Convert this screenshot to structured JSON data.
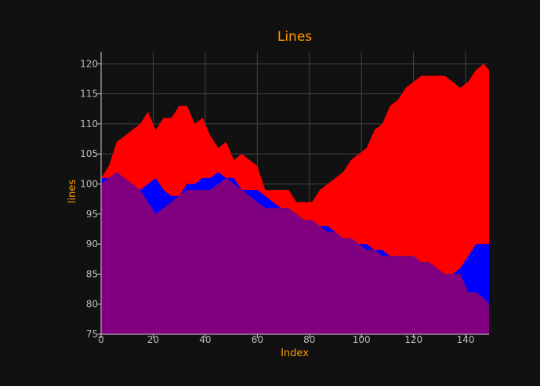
{
  "chart_data": {
    "type": "area",
    "title": "Lines",
    "xlabel": "Index",
    "ylabel": "lines",
    "xlim": [
      0,
      149
    ],
    "ylim": [
      75,
      122
    ],
    "xticks": [
      0,
      20,
      40,
      60,
      80,
      100,
      120,
      140
    ],
    "yticks": [
      75,
      80,
      85,
      90,
      95,
      100,
      105,
      110,
      115,
      120
    ],
    "grid": true,
    "legend": "none",
    "colors": {
      "background": "#111111",
      "plot_background": "#111111",
      "grid": "#444444",
      "axis": "#cccccc",
      "title": "#ff9900",
      "tick_labels": "#bbbbbb"
    },
    "series": [
      {
        "color": "#ff0000",
        "x": [
          0,
          3,
          6,
          9,
          12,
          15,
          18,
          21,
          24,
          27,
          30,
          33,
          36,
          39,
          42,
          45,
          48,
          51,
          54,
          57,
          60,
          63,
          66,
          69,
          72,
          75,
          78,
          81,
          84,
          87,
          90,
          93,
          96,
          99,
          102,
          105,
          108,
          111,
          114,
          117,
          120,
          123,
          126,
          129,
          132,
          135,
          138,
          141,
          144,
          147,
          149
        ],
        "values": [
          101,
          103,
          107,
          108,
          109,
          110,
          112,
          109,
          111,
          111,
          113,
          113,
          110,
          111,
          108,
          106,
          107,
          104,
          105,
          104,
          103,
          99,
          99,
          99,
          99,
          97,
          97,
          97,
          99,
          100,
          101,
          102,
          104,
          105,
          106,
          109,
          110,
          113,
          114,
          116,
          117,
          118,
          118,
          118,
          118,
          117,
          116,
          117,
          119,
          120,
          119
        ]
      },
      {
        "color": "#0000ff",
        "x": [
          0,
          3,
          6,
          9,
          12,
          15,
          18,
          21,
          24,
          27,
          30,
          33,
          36,
          39,
          42,
          45,
          48,
          51,
          54,
          57,
          60,
          63,
          66,
          69,
          72,
          75,
          78,
          81,
          84,
          87,
          90,
          93,
          96,
          99,
          102,
          105,
          108,
          111,
          114,
          117,
          120,
          123,
          126,
          129,
          132,
          135,
          138,
          141,
          144,
          147,
          149
        ],
        "values": [
          101,
          101,
          102,
          101,
          100,
          99,
          100,
          101,
          99,
          98,
          98,
          100,
          100,
          101,
          101,
          102,
          101,
          101,
          99,
          99,
          99,
          98,
          97,
          96,
          96,
          95,
          94,
          94,
          93,
          93,
          92,
          91,
          91,
          90,
          90,
          89,
          89,
          88,
          88,
          88,
          88,
          87,
          87,
          86,
          85,
          85,
          86,
          88,
          90,
          90,
          90
        ]
      },
      {
        "color": "#008000",
        "x": [
          0,
          3,
          6,
          9,
          12,
          15,
          18,
          21,
          24,
          27,
          30,
          33,
          36,
          39,
          42,
          45,
          48,
          51,
          54,
          57,
          60,
          63,
          66,
          69,
          72,
          75,
          78,
          81,
          84,
          87,
          90,
          93,
          96,
          99,
          102,
          105,
          108,
          111,
          114,
          117,
          120,
          123,
          126,
          129,
          132,
          135,
          138,
          141,
          144,
          147,
          149
        ],
        "values": [
          100,
          101,
          102,
          101,
          99,
          99,
          96,
          94,
          96,
          97,
          98,
          99,
          98,
          98,
          99,
          100,
          101,
          100,
          98,
          98,
          97,
          96,
          96,
          96,
          96,
          95,
          94,
          94,
          93,
          92,
          92,
          91,
          91,
          90,
          89,
          89,
          88,
          88,
          88,
          88,
          88,
          87,
          87,
          86,
          85,
          85,
          85,
          82,
          82,
          81,
          80
        ]
      },
      {
        "color": "#800080",
        "x": [
          0,
          3,
          6,
          9,
          12,
          15,
          18,
          21,
          24,
          27,
          30,
          33,
          36,
          39,
          42,
          45,
          48,
          51,
          54,
          57,
          60,
          63,
          66,
          69,
          72,
          75,
          78,
          81,
          84,
          87,
          90,
          93,
          96,
          99,
          102,
          105,
          108,
          111,
          114,
          117,
          120,
          123,
          126,
          129,
          132,
          135,
          138,
          141,
          144,
          147,
          149
        ],
        "values": [
          100,
          101,
          102,
          101,
          100,
          99,
          97,
          95,
          96,
          97,
          98,
          99,
          99,
          99,
          99,
          100,
          101,
          100,
          99,
          98,
          97,
          96,
          96,
          96,
          96,
          95,
          94,
          94,
          93,
          92,
          92,
          91,
          91,
          90,
          89,
          89,
          88,
          88,
          88,
          88,
          88,
          87,
          87,
          86,
          85,
          85,
          85,
          82,
          82,
          81,
          80
        ]
      }
    ]
  }
}
